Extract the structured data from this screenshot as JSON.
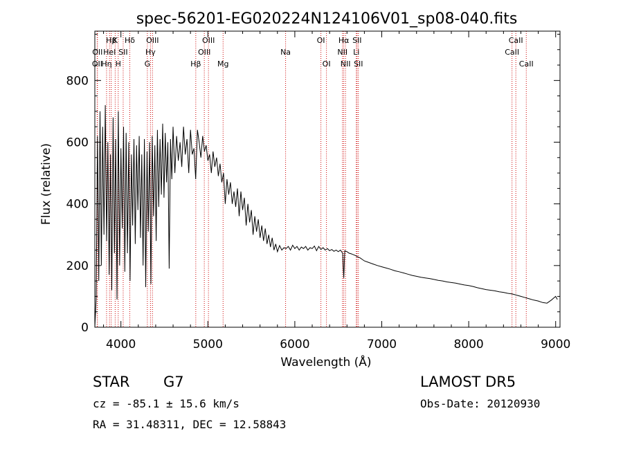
{
  "chart_data": {
    "type": "line",
    "title": "spec-56201-EG020224N124106V01_sp08-040.fits",
    "xlabel": "Wavelength (Å)",
    "ylabel": "Flux (relative)",
    "xlim": [
      3700,
      9050
    ],
    "ylim": [
      0,
      960
    ],
    "xticks": [
      4000,
      5000,
      6000,
      7000,
      8000,
      9000
    ],
    "yticks": [
      0,
      200,
      400,
      600,
      800
    ],
    "grid": false,
    "series": [
      {
        "color": "#000000",
        "x": [
          3700,
          3715,
          3730,
          3745,
          3760,
          3775,
          3790,
          3805,
          3820,
          3835,
          3850,
          3865,
          3880,
          3895,
          3910,
          3925,
          3940,
          3955,
          3970,
          3985,
          4000,
          4015,
          4030,
          4045,
          4060,
          4075,
          4090,
          4105,
          4120,
          4135,
          4150,
          4165,
          4180,
          4195,
          4210,
          4225,
          4240,
          4255,
          4270,
          4285,
          4300,
          4315,
          4330,
          4345,
          4360,
          4375,
          4390,
          4405,
          4420,
          4435,
          4450,
          4465,
          4480,
          4495,
          4510,
          4525,
          4540,
          4555,
          4570,
          4585,
          4600,
          4620,
          4640,
          4660,
          4680,
          4700,
          4720,
          4740,
          4760,
          4780,
          4800,
          4820,
          4840,
          4860,
          4880,
          4900,
          4920,
          4940,
          4960,
          4980,
          5000,
          5020,
          5040,
          5060,
          5080,
          5100,
          5120,
          5140,
          5160,
          5180,
          5200,
          5220,
          5240,
          5260,
          5280,
          5300,
          5320,
          5340,
          5360,
          5380,
          5400,
          5420,
          5440,
          5460,
          5480,
          5500,
          5520,
          5540,
          5560,
          5580,
          5600,
          5620,
          5640,
          5660,
          5680,
          5700,
          5720,
          5740,
          5760,
          5780,
          5800,
          5825,
          5850,
          5875,
          5900,
          5925,
          5950,
          5975,
          6000,
          6025,
          6050,
          6075,
          6100,
          6125,
          6150,
          6175,
          6200,
          6225,
          6250,
          6275,
          6300,
          6325,
          6350,
          6375,
          6400,
          6425,
          6450,
          6475,
          6500,
          6525,
          6550,
          6563,
          6575,
          6600,
          6625,
          6650,
          6675,
          6700,
          6725,
          6750,
          6775,
          6800,
          6850,
          6900,
          6950,
          7000,
          7050,
          7100,
          7150,
          7200,
          7250,
          7300,
          7350,
          7400,
          7450,
          7500,
          7550,
          7600,
          7650,
          7700,
          7750,
          7800,
          7850,
          7900,
          7950,
          8000,
          8050,
          8100,
          8150,
          8200,
          8250,
          8300,
          8350,
          8400,
          8450,
          8500,
          8550,
          8600,
          8650,
          8700,
          8750,
          8800,
          8850,
          8900,
          8950,
          9000,
          9020
        ],
        "y": [
          0,
          90,
          620,
          150,
          700,
          200,
          650,
          300,
          720,
          280,
          600,
          170,
          560,
          120,
          680,
          240,
          610,
          90,
          700,
          200,
          580,
          320,
          650,
          180,
          630,
          240,
          600,
          150,
          560,
          330,
          610,
          270,
          590,
          380,
          620,
          290,
          560,
          200,
          610,
          130,
          570,
          310,
          600,
          140,
          620,
          360,
          590,
          280,
          640,
          390,
          610,
          430,
          660,
          420,
          630,
          470,
          600,
          190,
          610,
          480,
          650,
          500,
          620,
          540,
          600,
          520,
          650,
          560,
          610,
          500,
          640,
          560,
          580,
          480,
          640,
          600,
          550,
          620,
          570,
          590,
          540,
          560,
          500,
          570,
          520,
          550,
          490,
          530,
          470,
          500,
          400,
          480,
          430,
          470,
          400,
          440,
          390,
          450,
          360,
          440,
          380,
          420,
          330,
          400,
          340,
          380,
          300,
          360,
          310,
          350,
          290,
          330,
          280,
          320,
          270,
          300,
          260,
          290,
          250,
          270,
          245,
          265,
          250,
          258,
          255,
          262,
          250,
          266,
          255,
          262,
          250,
          260,
          255,
          262,
          250,
          258,
          255,
          263,
          248,
          262,
          252,
          258,
          250,
          255,
          248,
          252,
          246,
          250,
          245,
          250,
          240,
          160,
          248,
          245,
          240,
          238,
          235,
          232,
          228,
          225,
          220,
          215,
          210,
          205,
          200,
          196,
          192,
          188,
          183,
          180,
          176,
          172,
          168,
          165,
          162,
          160,
          158,
          155,
          152,
          150,
          147,
          145,
          143,
          140,
          137,
          135,
          132,
          128,
          125,
          122,
          120,
          118,
          115,
          113,
          110,
          108,
          104,
          100,
          96,
          92,
          88,
          85,
          80,
          78,
          88,
          100,
          90
        ]
      }
    ],
    "lines": [
      {
        "x": 3727,
        "label": "OII",
        "row": 3
      },
      {
        "x": 3730,
        "label": "OII",
        "row": 2
      },
      {
        "x": 3835,
        "label": "Hη",
        "row": 3
      },
      {
        "x": 3869,
        "label": "HeI",
        "row": 2
      },
      {
        "x": 3889,
        "label": "Hβ",
        "row": 1
      },
      {
        "x": 3934,
        "label": "K",
        "row": 1
      },
      {
        "x": 3969,
        "label": "H",
        "row": 3
      },
      {
        "x": 4026,
        "label": "SII",
        "row": 2
      },
      {
        "x": 4102,
        "label": "Hδ",
        "row": 1
      },
      {
        "x": 4304,
        "label": "G",
        "row": 3
      },
      {
        "x": 4340,
        "label": "Hγ",
        "row": 2
      },
      {
        "x": 4363,
        "label": "OIII",
        "row": 1
      },
      {
        "x": 4861,
        "label": "Hβ",
        "row": 3
      },
      {
        "x": 4959,
        "label": "OIII",
        "row": 2
      },
      {
        "x": 5007,
        "label": "OIII",
        "row": 1
      },
      {
        "x": 5175,
        "label": "Mg",
        "row": 3
      },
      {
        "x": 5894,
        "label": "Na",
        "row": 2
      },
      {
        "x": 6300,
        "label": "OI",
        "row": 1
      },
      {
        "x": 6364,
        "label": "OI",
        "row": 3
      },
      {
        "x": 6548,
        "label": "NII",
        "row": 2
      },
      {
        "x": 6563,
        "label": "Hα",
        "row": 1
      },
      {
        "x": 6583,
        "label": "NII",
        "row": 3
      },
      {
        "x": 6707,
        "label": "Li",
        "row": 2
      },
      {
        "x": 6716,
        "label": "SII",
        "row": 1
      },
      {
        "x": 6731,
        "label": "SII",
        "row": 3
      },
      {
        "x": 8498,
        "label": "CaII",
        "row": 2
      },
      {
        "x": 8542,
        "label": "CaII",
        "row": 1
      },
      {
        "x": 8662,
        "label": "CaII",
        "row": 3
      }
    ]
  },
  "info": {
    "object_class": "STAR",
    "subclass": "G7",
    "survey": "LAMOST DR5",
    "cz_text": "cz = -85.1 ± 15.6 km/s",
    "obs_date": "Obs-Date: 20120930",
    "coords": "RA =  31.48311, DEC =  12.58843"
  },
  "colors": {
    "spectrum": "#000000",
    "line_marker": "#cc0000"
  }
}
